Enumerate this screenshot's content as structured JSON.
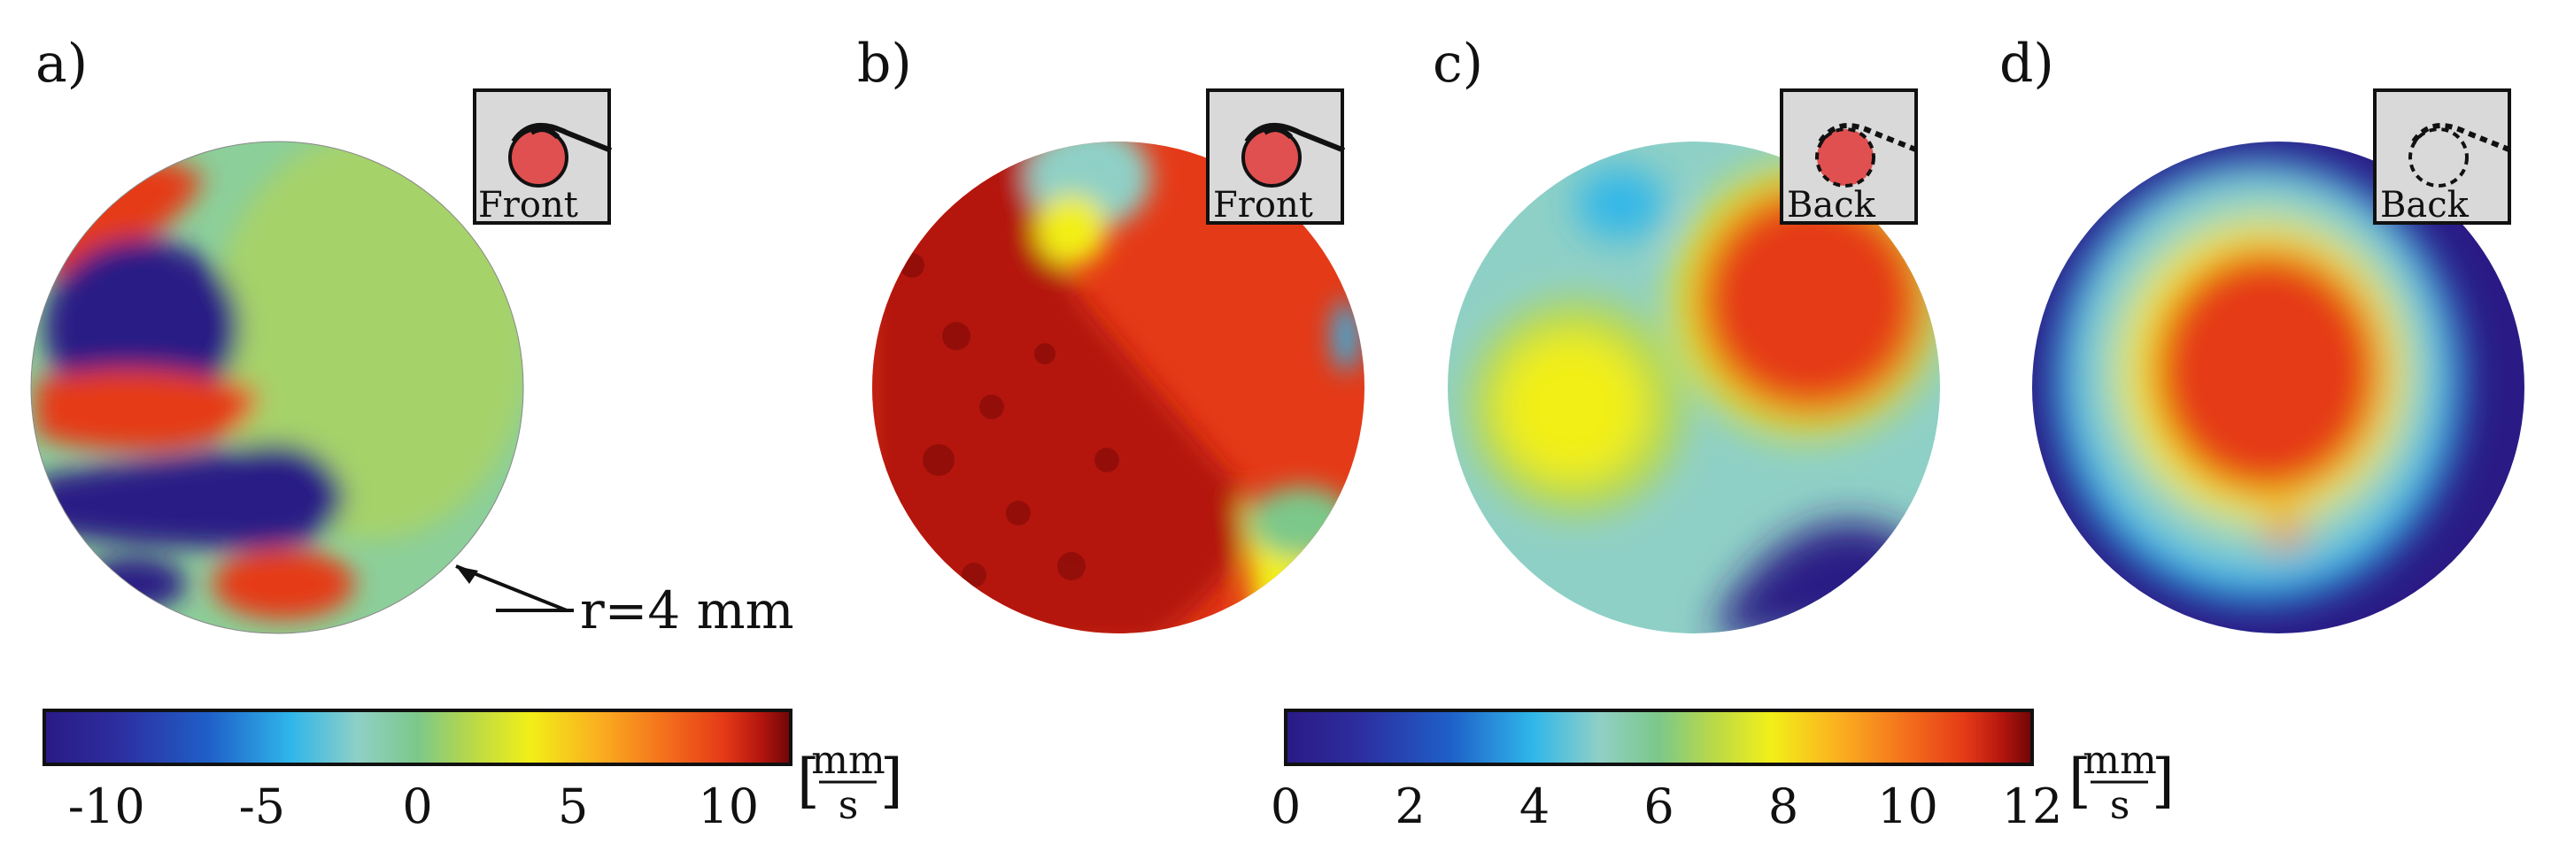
{
  "panels": [
    {
      "id": "a",
      "label": "a)",
      "inset": "Front",
      "colorbar": "diverging"
    },
    {
      "id": "b",
      "label": "b)",
      "inset": "Front",
      "colorbar": "diverging"
    },
    {
      "id": "c",
      "label": "c)",
      "inset": "Back",
      "colorbar": "sequential"
    },
    {
      "id": "d",
      "label": "d)",
      "inset": "Back",
      "colorbar": "sequential"
    }
  ],
  "annotation": "r=4 mm",
  "colorbars": [
    {
      "id": "diverging",
      "ticks": [
        "-10",
        "-5",
        "0",
        "5",
        "10"
      ],
      "tick_values": [
        -10,
        -5,
        0,
        5,
        10
      ],
      "range": [
        -12,
        12
      ],
      "unit_num": "mm",
      "unit_den": "s"
    },
    {
      "id": "sequential",
      "ticks": [
        "0",
        "2",
        "4",
        "6",
        "8",
        "10",
        "12"
      ],
      "tick_values": [
        0,
        2,
        4,
        6,
        8,
        10,
        12
      ],
      "range": [
        0,
        12
      ],
      "unit_num": "mm",
      "unit_den": "s"
    }
  ],
  "colormap": [
    "#2a1a85",
    "#2d2ea0",
    "#1f5fc8",
    "#2fb6ea",
    "#8fd0c6",
    "#7cc88a",
    "#b7d84a",
    "#f2ef18",
    "#fbb120",
    "#f4711c",
    "#e53a17",
    "#b4150e",
    "#6e0606"
  ]
}
